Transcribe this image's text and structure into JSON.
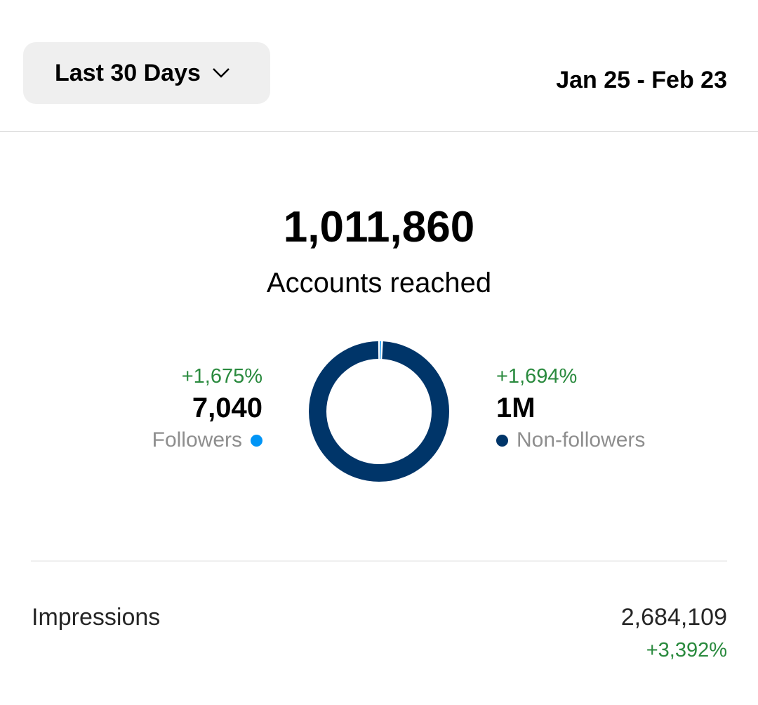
{
  "header": {
    "range_label": "Last 30 Days",
    "date_range": "Jan 25 - Feb 23"
  },
  "reach": {
    "total": "1,011,860",
    "label": "Accounts reached",
    "followers": {
      "change": "+1,675%",
      "value": "7,040",
      "label": "Followers",
      "color": "#0095f6"
    },
    "non_followers": {
      "change": "+1,694%",
      "value": "1M",
      "label": "Non-followers",
      "color": "#003569"
    }
  },
  "impressions": {
    "label": "Impressions",
    "value": "2,684,109",
    "change": "+3,392%"
  },
  "chart_data": {
    "type": "pie",
    "donut": true,
    "categories": [
      "Followers",
      "Non-followers"
    ],
    "values": [
      7040,
      1004820
    ],
    "colors": [
      "#0095f6",
      "#003569"
    ]
  }
}
